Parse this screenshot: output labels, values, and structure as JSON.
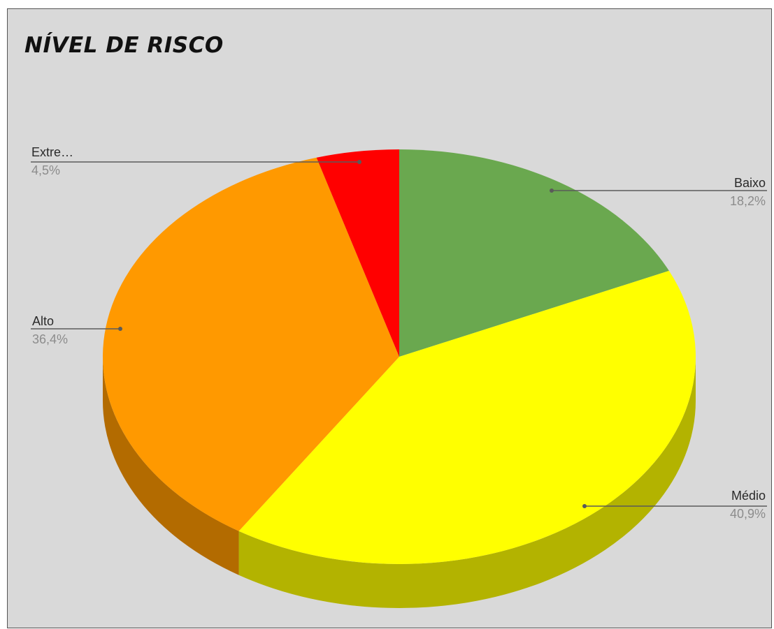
{
  "chart_data": {
    "type": "pie",
    "title": "NÍVEL DE RISCO",
    "three_d": true,
    "start": "12 o'clock",
    "direction": "clockwise",
    "slices": [
      {
        "label": "Baixo",
        "value": 18.2,
        "display": "18,2%",
        "color": "#6aa84f",
        "side_color": "#4f7e3b"
      },
      {
        "label": "Médio",
        "value": 40.9,
        "display": "40,9%",
        "color": "#ffff00",
        "side_color": "#b3b300"
      },
      {
        "label": "Alto",
        "value": 36.4,
        "display": "36,4%",
        "color": "#ff9900",
        "side_color": "#b36b00"
      },
      {
        "label": "Extre…",
        "value": 4.5,
        "display": "4,5%",
        "color": "#ff0000",
        "side_color": "#b30000"
      }
    ],
    "labels_style": "name and percentage with leader lines"
  }
}
